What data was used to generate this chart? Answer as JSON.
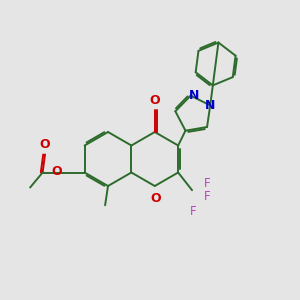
{
  "bg_color": "#e5e5e5",
  "bond_color": "#2d6b2d",
  "bond_width": 1.4,
  "dbo": 0.055,
  "o_color": "#cc0000",
  "n_color": "#0000cc",
  "f_color": "#bb44bb",
  "lw": 1.4,
  "xlim": [
    0,
    10
  ],
  "ylim": [
    0,
    10
  ]
}
